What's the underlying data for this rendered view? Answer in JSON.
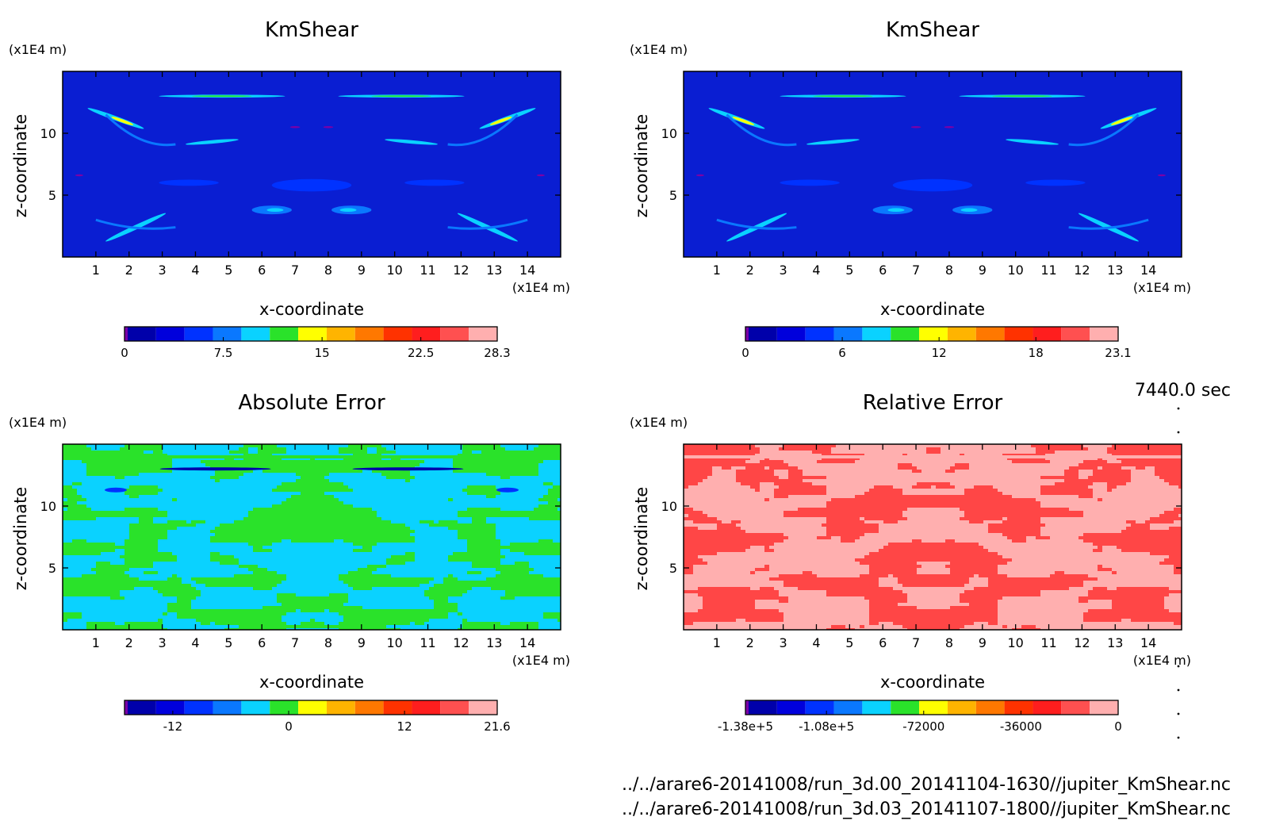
{
  "figure": {
    "time_label": "7440.0 sec",
    "file_paths": [
      "../../arare6-20141008/run_3d.00_20141104-1630//jupiter_KmShear.nc",
      "../../arare6-20141008/run_3d.03_20141107-1800//jupiter_KmShear.nc"
    ]
  },
  "colors": {
    "field_background": "#0a1ed2",
    "absolute_error_bands": [
      "#0ad2ff",
      "#2ae22a"
    ],
    "relative_error_bands": [
      "#ff4646",
      "#ffafaf"
    ]
  },
  "chart_data": [
    {
      "type": "heatmap",
      "title": "KmShear",
      "xlabel": "x-coordinate",
      "ylabel": "z-coordinate",
      "x_unit": "(x1E4 m)",
      "y_unit": "(x1E4 m)",
      "x_ticks": [
        "1",
        "2",
        "3",
        "4",
        "5",
        "6",
        "7",
        "8",
        "9",
        "10",
        "11",
        "12",
        "13",
        "14"
      ],
      "y_ticks": [
        "5",
        "10"
      ],
      "xlim": [
        0,
        15
      ],
      "ylim": [
        0,
        15
      ],
      "colorbar": {
        "colors": [
          "#7a00a8",
          "#0000aa",
          "#0000dc",
          "#0032ff",
          "#0a78ff",
          "#0ad2ff",
          "#2ae22a",
          "#ffff00",
          "#ffb400",
          "#ff7800",
          "#ff3200",
          "#ff1e1e",
          "#ff5050",
          "#ffafaf"
        ],
        "tick_labels": [
          "0",
          "7.5",
          "15",
          "22.5",
          "28.3"
        ],
        "tick_values": [
          0,
          7.5,
          15,
          22.5,
          28.3
        ],
        "range": [
          0,
          28.3
        ]
      }
    },
    {
      "type": "heatmap",
      "title": "KmShear",
      "xlabel": "x-coordinate",
      "ylabel": "z-coordinate",
      "x_unit": "(x1E4 m)",
      "y_unit": "(x1E4 m)",
      "x_ticks": [
        "1",
        "2",
        "3",
        "4",
        "5",
        "6",
        "7",
        "8",
        "9",
        "10",
        "11",
        "12",
        "13",
        "14"
      ],
      "y_ticks": [
        "5",
        "10"
      ],
      "xlim": [
        0,
        15
      ],
      "ylim": [
        0,
        15
      ],
      "colorbar": {
        "colors": [
          "#7a00a8",
          "#0000aa",
          "#0000dc",
          "#0032ff",
          "#0a78ff",
          "#0ad2ff",
          "#2ae22a",
          "#ffff00",
          "#ffb400",
          "#ff7800",
          "#ff3200",
          "#ff1e1e",
          "#ff5050",
          "#ffafaf"
        ],
        "tick_labels": [
          "0",
          "6",
          "12",
          "18",
          "23.1"
        ],
        "tick_values": [
          0,
          6,
          12,
          18,
          23.1
        ],
        "range": [
          0,
          23.1
        ]
      }
    },
    {
      "type": "heatmap",
      "title": "Absolute Error",
      "xlabel": "x-coordinate",
      "ylabel": "z-coordinate",
      "x_unit": "(x1E4 m)",
      "y_unit": "(x1E4 m)",
      "x_ticks": [
        "1",
        "2",
        "3",
        "4",
        "5",
        "6",
        "7",
        "8",
        "9",
        "10",
        "11",
        "12",
        "13",
        "14"
      ],
      "y_ticks": [
        "5",
        "10"
      ],
      "xlim": [
        0,
        15
      ],
      "ylim": [
        0,
        15
      ],
      "colorbar": {
        "colors": [
          "#7a00a8",
          "#0000aa",
          "#0000dc",
          "#0032ff",
          "#0a78ff",
          "#0ad2ff",
          "#2ae22a",
          "#ffff00",
          "#ffb400",
          "#ff7800",
          "#ff3200",
          "#ff1e1e",
          "#ff5050",
          "#ffafaf"
        ],
        "tick_labels": [
          "-12",
          "0",
          "12",
          "21.6"
        ],
        "tick_values": [
          -12,
          0,
          12,
          21.6
        ],
        "range": [
          -17,
          21.6
        ]
      }
    },
    {
      "type": "heatmap",
      "title": "Relative Error",
      "xlabel": "x-coordinate",
      "ylabel": "z-coordinate",
      "x_unit": "(x1E4 m)",
      "y_unit": "(x1E4 m)",
      "x_ticks": [
        "1",
        "2",
        "3",
        "4",
        "5",
        "6",
        "7",
        "8",
        "9",
        "10",
        "11",
        "12",
        "13",
        "14"
      ],
      "y_ticks": [
        "5",
        "10"
      ],
      "xlim": [
        0,
        15
      ],
      "ylim": [
        0,
        15
      ],
      "colorbar": {
        "colors": [
          "#7a00a8",
          "#0000aa",
          "#0000dc",
          "#0032ff",
          "#0a78ff",
          "#0ad2ff",
          "#2ae22a",
          "#ffff00",
          "#ffb400",
          "#ff7800",
          "#ff3200",
          "#ff1e1e",
          "#ff5050",
          "#ffafaf"
        ],
        "tick_labels": [
          "-1.38e+5",
          "-1.08e+5",
          "-72000",
          "-36000",
          "0"
        ],
        "tick_values": [
          -138000,
          -108000,
          -72000,
          -36000,
          0
        ],
        "range": [
          -138000,
          0
        ]
      }
    }
  ]
}
